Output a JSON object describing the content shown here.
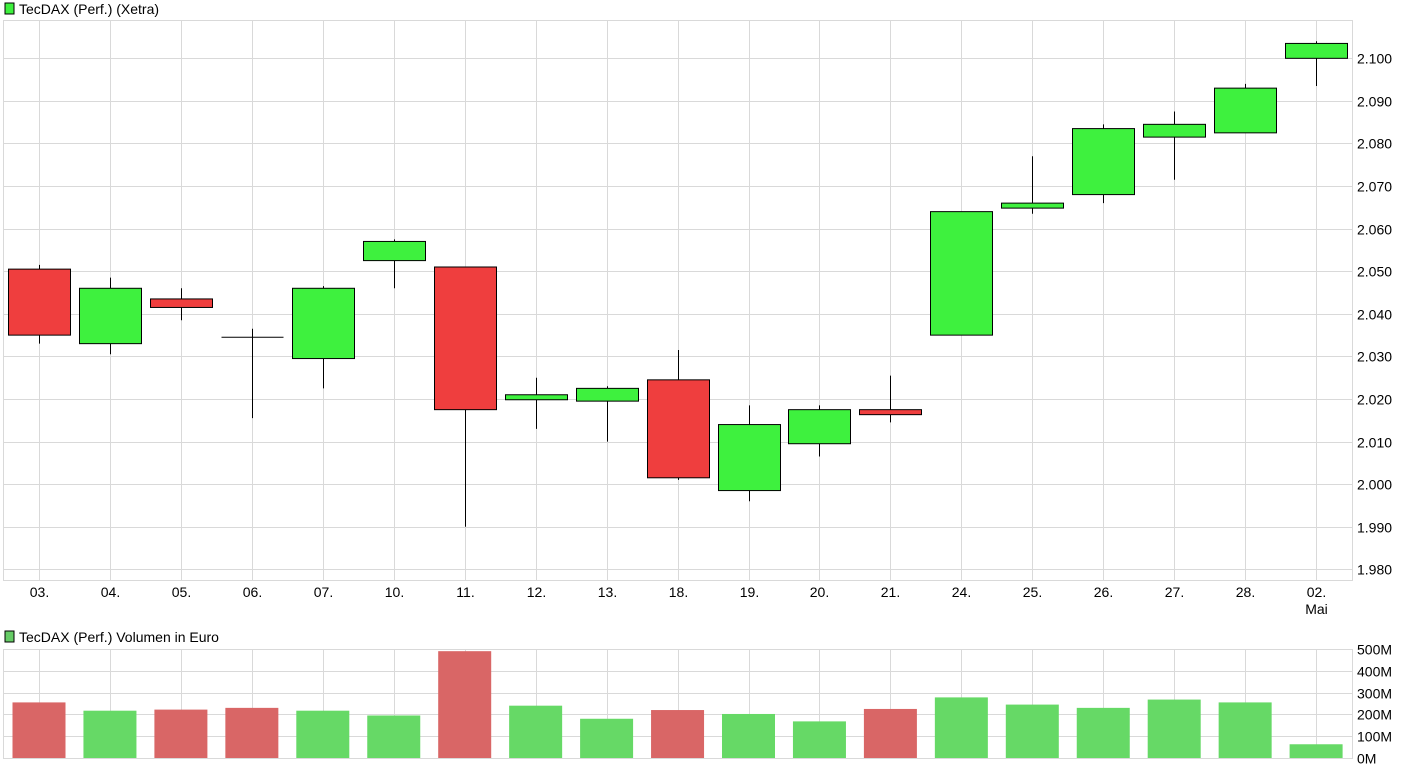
{
  "colors": {
    "up": "#3ef13e",
    "down": "#ef3e3e",
    "vol_up": "#66d966",
    "vol_down": "#d96666",
    "grid": "#d9d9d9",
    "legend_swatch": "#3ef13e",
    "legend_swatch_vol": "#66cc66"
  },
  "chart_data": [
    {
      "type": "candlestick",
      "title": "TecDAX (Perf.) (Xetra)",
      "categories": [
        "03.",
        "04.",
        "05.",
        "06.",
        "07.",
        "10.",
        "11.",
        "12.",
        "13.",
        "18.",
        "19.",
        "20.",
        "21.",
        "24.",
        "25.",
        "26.",
        "27.",
        "28.",
        "02."
      ],
      "category_sublabels": [
        "",
        "",
        "",
        "",
        "",
        "",
        "",
        "",
        "",
        "",
        "",
        "",
        "",
        "",
        "",
        "",
        "",
        "",
        "Mai"
      ],
      "open": [
        2050.5,
        2033.0,
        2043.5,
        2034.5,
        2029.5,
        2052.5,
        2051.0,
        2020.0,
        2019.5,
        2024.5,
        1998.5,
        2009.5,
        2017.5,
        2035.0,
        2065.0,
        2068.0,
        2081.5,
        2082.5,
        2100.0
      ],
      "high": [
        2051.5,
        2048.5,
        2046.0,
        2036.5,
        2046.5,
        2057.5,
        2051.0,
        2025.0,
        2023.0,
        2031.5,
        2018.5,
        2018.5,
        2025.5,
        2064.0,
        2077.0,
        2084.5,
        2087.5,
        2094.0,
        2104.0
      ],
      "low": [
        2033.0,
        2030.5,
        2038.5,
        2015.5,
        2022.5,
        2046.0,
        1990.0,
        2013.0,
        2010.0,
        2001.0,
        1996.0,
        2006.5,
        2014.5,
        2035.0,
        2063.5,
        2066.0,
        2071.5,
        2082.5,
        2093.5
      ],
      "close": [
        2035.0,
        2046.0,
        2041.5,
        2034.5,
        2046.0,
        2057.0,
        2017.5,
        2021.0,
        2022.5,
        2001.5,
        2014.0,
        2017.5,
        2016.5,
        2064.0,
        2066.0,
        2083.5,
        2084.5,
        2093.0,
        2103.5
      ],
      "y_ticks": [
        "1.980",
        "1.990",
        "2.000",
        "2.010",
        "2.020",
        "2.030",
        "2.040",
        "2.050",
        "2.060",
        "2.070",
        "2.080",
        "2.090",
        "2.100"
      ],
      "ylim": [
        1977.5,
        2109.0
      ],
      "grid": true,
      "legend": "top-left"
    },
    {
      "type": "bar",
      "title": "TecDAX (Perf.) Volumen in Euro",
      "categories": [
        "03.",
        "04.",
        "05.",
        "06.",
        "07.",
        "10.",
        "11.",
        "12.",
        "13.",
        "18.",
        "19.",
        "20.",
        "21.",
        "24.",
        "25.",
        "26.",
        "27.",
        "28.",
        "02."
      ],
      "values": [
        255,
        217,
        222,
        230,
        217,
        195,
        490,
        240,
        180,
        220,
        202,
        168,
        225,
        278,
        245,
        230,
        268,
        255,
        63
      ],
      "direction": [
        "down",
        "up",
        "down",
        "down",
        "up",
        "up",
        "down",
        "up",
        "up",
        "down",
        "up",
        "up",
        "down",
        "up",
        "up",
        "up",
        "up",
        "up",
        "up"
      ],
      "unit": "M",
      "y_ticks": [
        "0M",
        "100M",
        "200M",
        "300M",
        "400M",
        "500M"
      ],
      "ylim": [
        0,
        500
      ],
      "grid": true,
      "legend": "top-left"
    }
  ]
}
